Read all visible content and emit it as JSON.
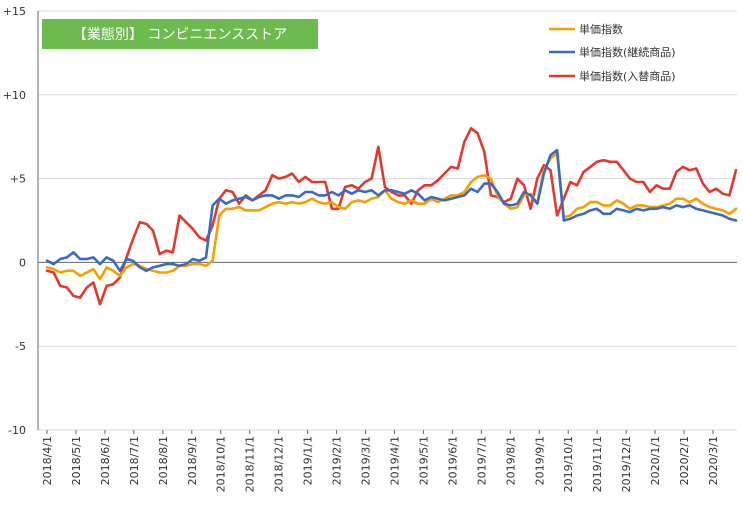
{
  "chart_data": {
    "type": "line",
    "title": "【業態別】 コンビニエンスストア",
    "title_bg_color": "#6dbb4e",
    "ylim": [
      -10,
      15
    ],
    "yticks": [
      "+15",
      "+10",
      "+5",
      "0",
      "-5",
      "-10"
    ],
    "grid": "horizontal",
    "legend_position": "top-right",
    "x_labels": [
      "2018/4/1",
      "2018/5/1",
      "2018/6/1",
      "2018/7/1",
      "2018/8/1",
      "2018/9/1",
      "2018/10/1",
      "2018/11/1",
      "2018/12/1",
      "2019/1/1",
      "2019/2/1",
      "2019/3/1",
      "2019/4/1",
      "2019/5/1",
      "2019/6/1",
      "2019/7/1",
      "2019/8/1",
      "2019/9/1",
      "2019/10/1",
      "2019/11/1",
      "2019/12/1",
      "2020/1/1",
      "2020/2/1",
      "2020/3/1"
    ],
    "series": [
      {
        "name": "単価指数",
        "color": "#f5a000",
        "values": [
          -0.3,
          -0.4,
          -0.6,
          -0.5,
          -0.5,
          -0.8,
          -0.6,
          -0.4,
          -1.0,
          -0.3,
          -0.5,
          -0.8,
          -0.3,
          -0.1,
          -0.2,
          -0.4,
          -0.5,
          -0.6,
          -0.6,
          -0.5,
          -0.2,
          -0.2,
          -0.1,
          -0.1,
          -0.2,
          0.1,
          2.8,
          3.2,
          3.2,
          3.3,
          3.1,
          3.1,
          3.1,
          3.3,
          3.5,
          3.6,
          3.5,
          3.6,
          3.5,
          3.6,
          3.8,
          3.6,
          3.5,
          3.6,
          3.3,
          3.2,
          3.6,
          3.7,
          3.6,
          3.8,
          3.9,
          4.3,
          3.8,
          3.6,
          3.5,
          3.7,
          3.5,
          3.5,
          3.8,
          3.6,
          3.8,
          4.0,
          4.0,
          4.2,
          4.8,
          5.1,
          5.2,
          5.0,
          4.0,
          3.5,
          3.2,
          3.3,
          4.0,
          4.1,
          3.5,
          5.5,
          6.2,
          6.5,
          2.7,
          2.8,
          3.2,
          3.3,
          3.6,
          3.6,
          3.4,
          3.4,
          3.7,
          3.5,
          3.2,
          3.4,
          3.4,
          3.3,
          3.3,
          3.4,
          3.5,
          3.8,
          3.8,
          3.6,
          3.8,
          3.5,
          3.3,
          3.2,
          3.1,
          2.9,
          3.2
        ]
      },
      {
        "name": "単価指数(継続商品)",
        "color": "#3a6bc3",
        "values": [
          0.1,
          -0.1,
          0.2,
          0.3,
          0.6,
          0.2,
          0.2,
          0.3,
          -0.1,
          0.3,
          0.1,
          -0.5,
          0.2,
          0.1,
          -0.3,
          -0.5,
          -0.3,
          -0.2,
          -0.1,
          -0.1,
          -0.2,
          -0.1,
          0.2,
          0.1,
          0.3,
          3.4,
          3.8,
          3.5,
          3.7,
          3.8,
          3.9,
          3.7,
          3.9,
          4.0,
          4.0,
          3.8,
          4.0,
          4.0,
          3.9,
          4.2,
          4.2,
          4.0,
          4.0,
          4.2,
          4.0,
          4.3,
          4.1,
          4.3,
          4.2,
          4.3,
          4.0,
          4.3,
          4.3,
          4.2,
          4.1,
          4.3,
          4.1,
          3.7,
          3.9,
          3.8,
          3.7,
          3.8,
          3.9,
          4.0,
          4.4,
          4.2,
          4.7,
          4.7,
          4.2,
          3.5,
          3.4,
          3.5,
          4.2,
          4.0,
          3.5,
          5.3,
          6.4,
          6.7,
          2.5,
          2.6,
          2.8,
          2.9,
          3.1,
          3.2,
          2.9,
          2.9,
          3.2,
          3.1,
          3.0,
          3.2,
          3.1,
          3.2,
          3.2,
          3.3,
          3.2,
          3.4,
          3.3,
          3.4,
          3.2,
          3.1,
          3.0,
          2.9,
          2.8,
          2.6,
          2.5
        ]
      },
      {
        "name": "単価指数(入替商品)",
        "color": "#e03a2f",
        "values": [
          -0.5,
          -0.6,
          -1.4,
          -1.5,
          -2.0,
          -2.1,
          -1.5,
          -1.2,
          -2.5,
          -1.4,
          -1.3,
          -0.9,
          0.3,
          1.4,
          2.4,
          2.3,
          1.9,
          0.5,
          0.7,
          0.6,
          2.8,
          2.4,
          2.0,
          1.5,
          1.3,
          2.2,
          3.8,
          4.3,
          4.2,
          3.5,
          4.0,
          3.7,
          4.0,
          4.3,
          5.2,
          5.0,
          5.1,
          5.3,
          4.8,
          5.1,
          4.8,
          4.8,
          4.8,
          3.2,
          3.2,
          4.5,
          4.6,
          4.4,
          4.8,
          5.0,
          6.9,
          4.5,
          4.2,
          4.0,
          4.0,
          3.5,
          4.3,
          4.6,
          4.6,
          4.9,
          5.3,
          5.7,
          5.6,
          7.2,
          8.0,
          7.7,
          6.6,
          4.0,
          3.9,
          3.6,
          3.8,
          5.0,
          4.6,
          3.2,
          5.0,
          5.8,
          5.5,
          2.8,
          3.8,
          4.8,
          4.6,
          5.4,
          5.7,
          6.0,
          6.1,
          6.0,
          6.0,
          5.5,
          5.0,
          4.8,
          4.8,
          4.2,
          4.6,
          4.4,
          4.4,
          5.4,
          5.7,
          5.5,
          5.6,
          4.7,
          4.2,
          4.4,
          4.1,
          4.0,
          5.5
        ]
      }
    ]
  }
}
